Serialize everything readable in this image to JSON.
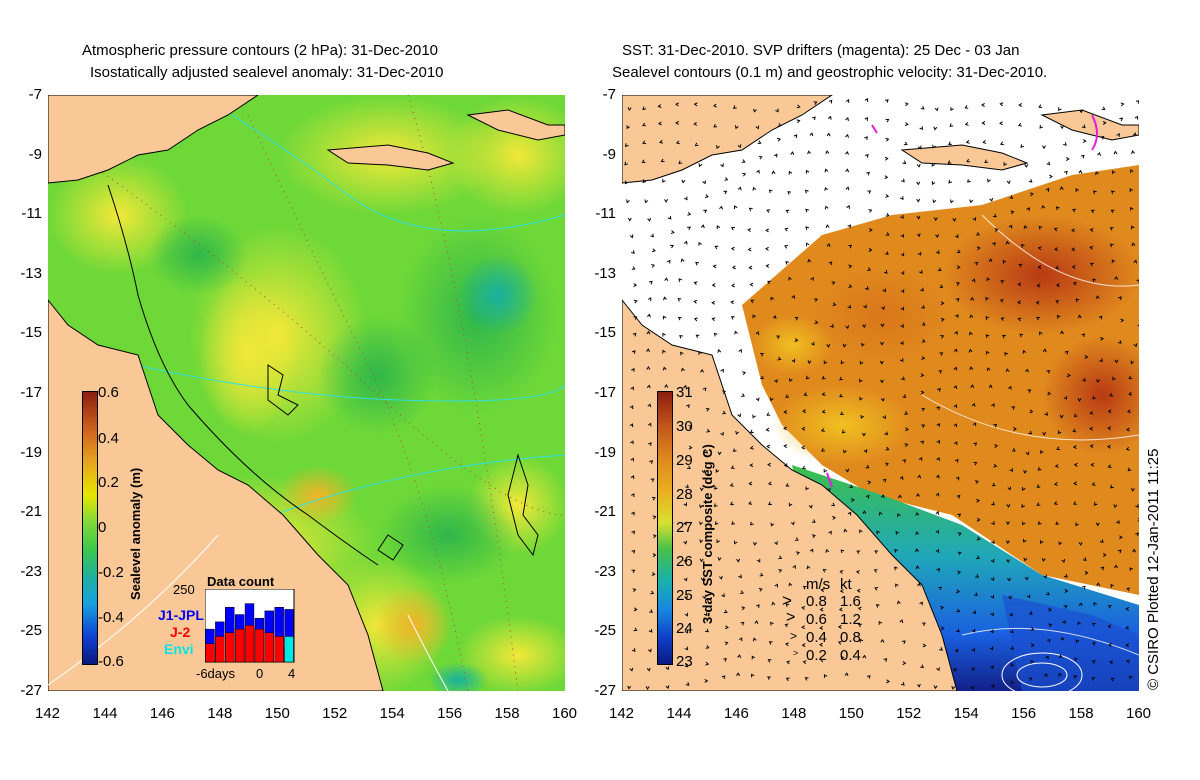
{
  "left_panel": {
    "title_line1": "Atmospheric pressure contours (2 hPa): 31-Dec-2010",
    "title_line2": "Isostatically adjusted sealevel anomaly: 31-Dec-2010",
    "colorbar": {
      "label": "Sealevel anomaly (m)",
      "ticks": [
        "0.6",
        "0.4",
        "0.2",
        "0",
        "-0.2",
        "-0.4",
        "-0.6"
      ]
    },
    "data_count": {
      "title": "Data count",
      "y_tick": "250",
      "x_ticks": [
        "-6days",
        "0",
        "4"
      ],
      "legend": [
        "J1-JPL",
        "J-2",
        "Envi"
      ],
      "legend_colors": [
        "#0000ff",
        "#ff0000",
        "#00e5e5"
      ],
      "bars": [
        {
          "blue": 0.45,
          "red": 0.25,
          "cyan": 0
        },
        {
          "blue": 0.55,
          "red": 0.35,
          "cyan": 0
        },
        {
          "blue": 0.75,
          "red": 0.4,
          "cyan": 0
        },
        {
          "blue": 0.65,
          "red": 0.45,
          "cyan": 0
        },
        {
          "blue": 0.8,
          "red": 0.5,
          "cyan": 0
        },
        {
          "blue": 0.6,
          "red": 0.45,
          "cyan": 0
        },
        {
          "blue": 0.7,
          "red": 0.4,
          "cyan": 0
        },
        {
          "blue": 0.75,
          "red": 0.35,
          "cyan": 0
        },
        {
          "blue": 0.72,
          "red": 0.2,
          "cyan": 0.35
        }
      ]
    }
  },
  "right_panel": {
    "title_line1": "SST: 31-Dec-2010. SVP drifters (magenta): 25 Dec - 03 Jan",
    "title_line2": "Sealevel contours (0.1 m) and geostrophic velocity: 31-Dec-2010.",
    "colorbar": {
      "label": "3-day SST composite (deg C)",
      "ticks": [
        "31",
        "30",
        "29",
        "28",
        "27",
        "26",
        "25",
        "24",
        "23"
      ]
    },
    "velocity_legend": {
      "header_ms": "m/s",
      "header_kt": "kt",
      "rows": [
        {
          "ms": "0.8",
          "kt": "1.6"
        },
        {
          "ms": "0.6",
          "kt": "1.2"
        },
        {
          "ms": "0.4",
          "kt": "0.8"
        },
        {
          "ms": "0.2",
          "kt": "0.4"
        }
      ]
    }
  },
  "axes": {
    "lat_ticks": [
      "-7",
      "-9",
      "-11",
      "-13",
      "-15",
      "-17",
      "-19",
      "-21",
      "-23",
      "-25",
      "-27"
    ],
    "lon_ticks": [
      "142",
      "144",
      "146",
      "148",
      "150",
      "152",
      "154",
      "156",
      "158",
      "160"
    ]
  },
  "credit": "© CSIRO Plotted 12-Jan-2011 11:25",
  "colors": {
    "land": "#f9c896",
    "sla_green": "#63d23a",
    "sla_yellow": "#d8ec3c",
    "sst_orange": "#e08a1e",
    "sst_blue": "#1c5ad8"
  }
}
